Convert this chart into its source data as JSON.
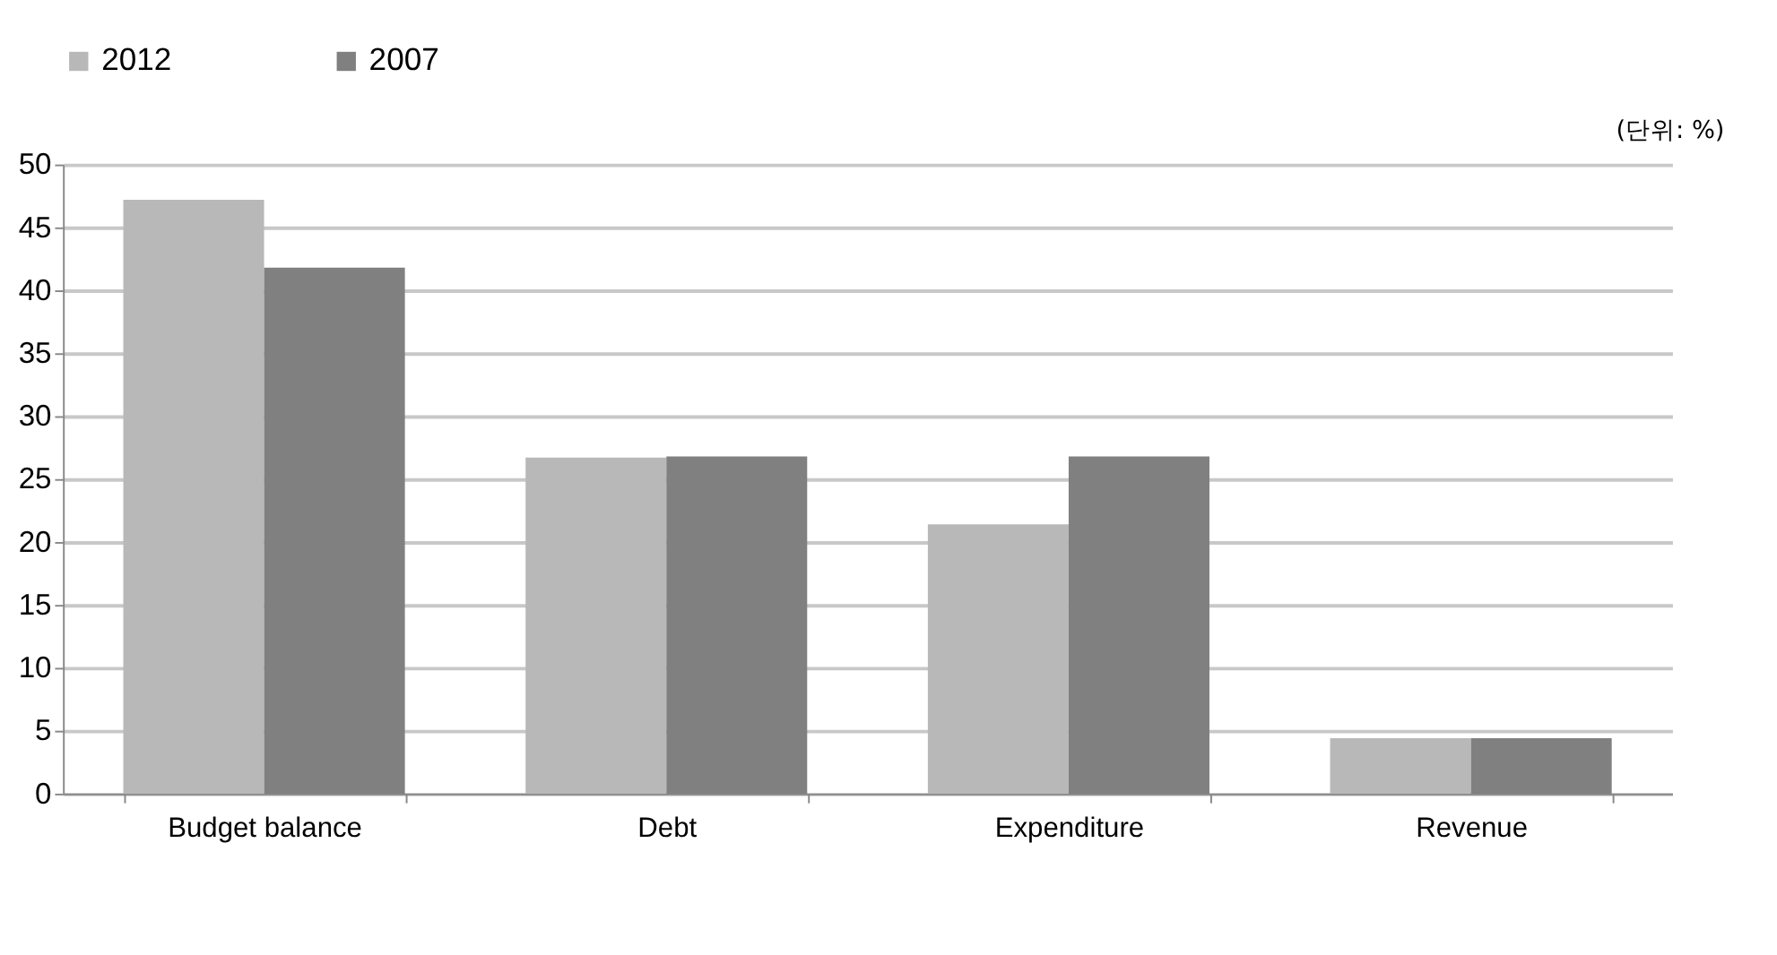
{
  "chart_data": {
    "type": "bar",
    "categories": [
      "Budget balance",
      "Debt",
      "Expenditure",
      "Revenue"
    ],
    "series": [
      {
        "name": "2012",
        "color": "#b8b8b8",
        "values": [
          47.2,
          26.7,
          21.4,
          4.4
        ]
      },
      {
        "name": "2007",
        "color": "#808080",
        "values": [
          41.8,
          26.8,
          26.8,
          4.4
        ]
      }
    ],
    "ylim": [
      0,
      50
    ],
    "yticks": [
      0,
      5,
      10,
      15,
      20,
      25,
      30,
      35,
      40,
      45,
      50
    ],
    "grid": "y",
    "legend": "top",
    "annotations": [
      "(단위: %)"
    ]
  }
}
